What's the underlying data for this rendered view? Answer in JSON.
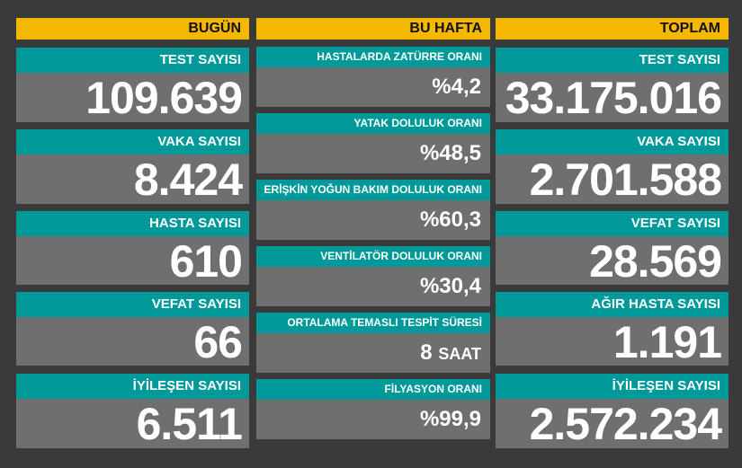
{
  "today": {
    "header": "BUGÜN",
    "cards": [
      {
        "label": "TEST SAYISI",
        "value": "109.639"
      },
      {
        "label": "VAKA SAYISI",
        "value": "8.424"
      },
      {
        "label": "HASTA SAYISI",
        "value": "610"
      },
      {
        "label": "VEFAT SAYISI",
        "value": "66"
      },
      {
        "label": "İYİLEŞEN SAYISI",
        "value": "6.511"
      }
    ]
  },
  "week": {
    "header": "BU HAFTA",
    "cards": [
      {
        "label": "HASTALARDA ZATÜRRE ORANI",
        "value": "%4,2"
      },
      {
        "label": "YATAK DOLULUK ORANI",
        "value": "%48,5"
      },
      {
        "label": "ERİŞKİN YOĞUN BAKIM DOLULUK ORANI",
        "value": "%60,3"
      },
      {
        "label": "VENTİLATÖR DOLULUK ORANI",
        "value": "%30,4"
      },
      {
        "label": "ORTALAMA TEMASLI TESPİT SÜRESİ",
        "value": "8",
        "unit": "SAAT"
      },
      {
        "label": "FİLYASYON ORANI",
        "value": "%99,9"
      }
    ]
  },
  "total": {
    "header": "TOPLAM",
    "cards": [
      {
        "label": "TEST SAYISI",
        "value": "33.175.016"
      },
      {
        "label": "VAKA SAYISI",
        "value": "2.701.588"
      },
      {
        "label": "VEFAT SAYISI",
        "value": "28.569"
      },
      {
        "label": "AĞIR HASTA SAYISI",
        "value": "1.191"
      },
      {
        "label": "İYİLEŞEN SAYISI",
        "value": "2.572.234"
      }
    ]
  },
  "colors": {
    "header": "#f5b800",
    "label": "#009999",
    "card": "#6f6f6f",
    "background": "#3a3a3a"
  }
}
